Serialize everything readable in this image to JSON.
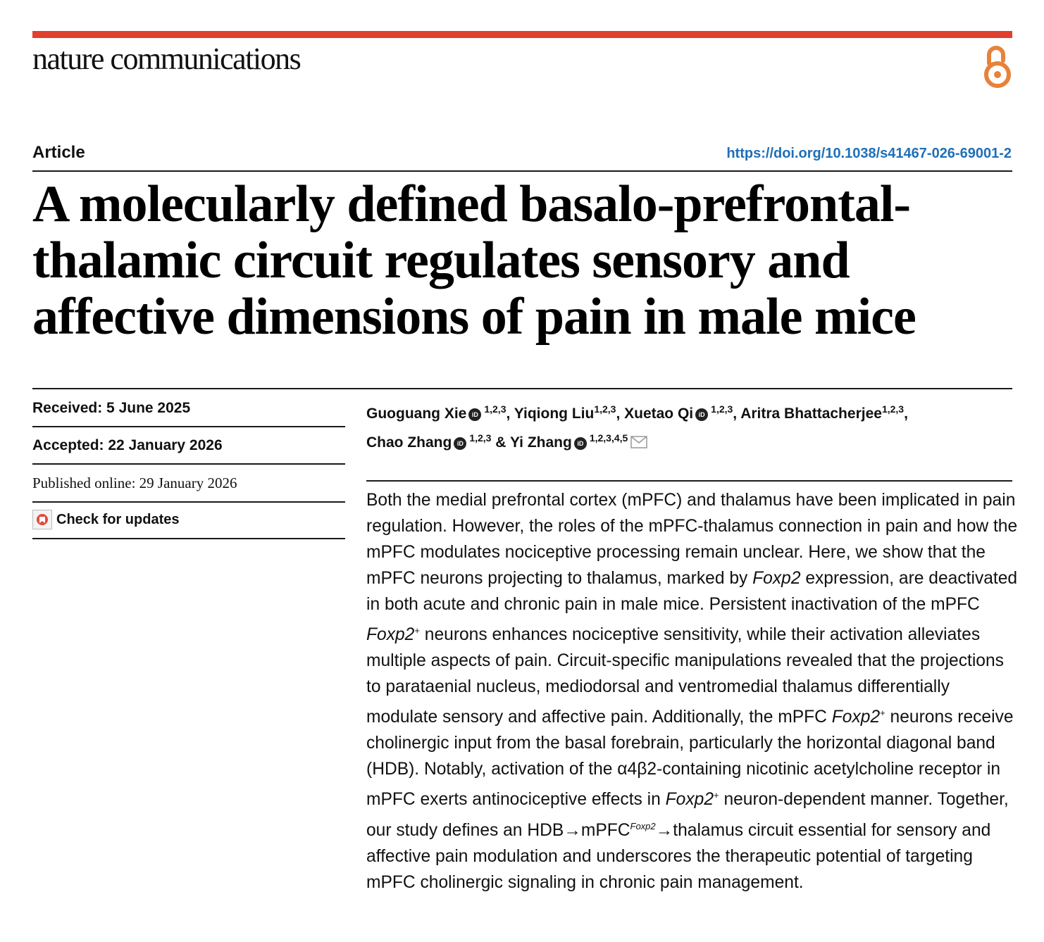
{
  "journal": {
    "name": "nature communications"
  },
  "open_access": {
    "icon": "open-access-icon",
    "color": "#e8823a"
  },
  "article": {
    "type": "Article",
    "doi": "https://doi.org/10.1038/s41467-026-69001-2",
    "title": "A molecularly defined basalo-prefrontal-thalamic circuit regulates sensory and affective dimensions of pain in male mice"
  },
  "dates": {
    "received": "Received: 5 June 2025",
    "accepted": "Accepted: 22 January 2026",
    "published": "Published online: 29 January 2026",
    "check_updates": "Check for updates"
  },
  "authors": [
    {
      "name": "Guoguang Xie",
      "affil": "1,2,3",
      "orcid": true,
      "sep": ", "
    },
    {
      "name": "Yiqiong Liu",
      "affil": "1,2,3",
      "orcid": false,
      "sep": ", "
    },
    {
      "name": "Xuetao Qi",
      "affil": "1,2,3",
      "orcid": true,
      "sep": ", "
    },
    {
      "name": "Aritra Bhattacherjee",
      "affil": "1,2,3",
      "orcid": false,
      "sep": ", "
    },
    {
      "name": "Chao Zhang",
      "affil": "1,2,3",
      "orcid": true,
      "sep": " & "
    },
    {
      "name": "Yi Zhang",
      "affil": "1,2,3,4,5",
      "orcid": true,
      "sep": ""
    }
  ],
  "abstract": {
    "p1": "Both the medial prefrontal cortex (mPFC) and thalamus have been implicated in pain regulation. However, the roles of the mPFC-thalamus connection in pain and how the mPFC modulates nociceptive processing remain unclear. Here, we show that the mPFC neurons projecting to thalamus, marked by ",
    "gene": "Foxp2",
    "p2": " expression, are deactivated in both acute and chronic pain in male mice. Persistent inactivation of the mPFC ",
    "plus": "+",
    "p3": " neurons enhances nociceptive sensitivity, while their activation alleviates multiple aspects of pain. Circuit-specific manipulations revealed that the projections to parataenial nucleus, mediodorsal and ventromedial thalamus differentially modulate sensory and affective pain. Additionally, the mPFC ",
    "p4": " neurons receive cholinergic input from the basal forebrain, particularly the horizontal diagonal band (HDB). Notably, activation of the α4β2-containing nicotinic acetylcholine receptor in mPFC exerts antinociceptive effects in ",
    "p5": " neuron-dependent manner. Together, our study defines an HDB→mPFC",
    "p6": "→thalamus circuit essential for sensory and affective pain modulation and underscores the therapeutic potential of targeting mPFC cholinergic signaling in chronic pain management."
  }
}
